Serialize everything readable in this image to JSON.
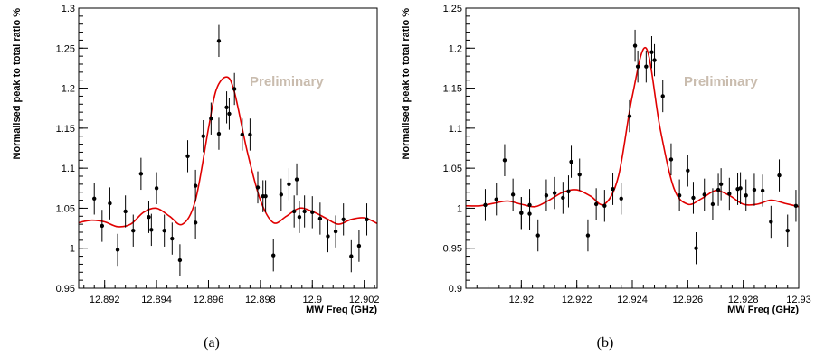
{
  "chart_data": [
    {
      "type": "scatter",
      "caption": "(a)",
      "xlabel": "MW Freq (GHz)",
      "ylabel": "Normalised peak to total ratio %",
      "annotation": "Preliminary",
      "xlim": [
        12.891,
        12.9025
      ],
      "ylim": [
        0.95,
        1.3
      ],
      "xticks": [
        "12.892",
        "12.894",
        "12.896",
        "12.898",
        "12.9",
        "12.902"
      ],
      "xtick_values": [
        12.892,
        12.894,
        12.896,
        12.898,
        12.9,
        12.902
      ],
      "yticks": [
        "0.95",
        "1",
        "1.05",
        "1.1",
        "1.15",
        "1.2",
        "1.25",
        "1.3"
      ],
      "ytick_values": [
        0.95,
        1.0,
        1.05,
        1.1,
        1.15,
        1.2,
        1.25,
        1.3
      ],
      "grid": false,
      "colors": {
        "data": "#000000",
        "fit": "#e00000",
        "annotation": "#c9bcae"
      },
      "series": [
        {
          "kind": "points_with_errors",
          "x": [
            12.8916,
            12.8919,
            12.8922,
            12.8925,
            12.8928,
            12.8931,
            12.8934,
            12.8937,
            12.894,
            12.8943,
            12.8946,
            12.8949,
            12.8952,
            12.8955,
            12.8958,
            12.8961,
            12.8964,
            12.8967,
            12.897,
            12.8973,
            12.8976,
            12.8979,
            12.8982,
            12.8985,
            12.8988,
            12.8991,
            12.8994,
            12.8997,
            12.9,
            12.9003,
            12.9006,
            12.9009,
            12.9012,
            12.9015,
            12.9018,
            12.9021,
            12.8938,
            12.8955,
            12.8964,
            12.8968,
            12.8981,
            12.8993,
            12.8995
          ],
          "y": [
            1.062,
            1.028,
            1.056,
            0.998,
            1.046,
            1.022,
            1.093,
            1.039,
            1.075,
            1.022,
            1.012,
            0.985,
            1.115,
            1.078,
            1.14,
            1.162,
            1.259,
            1.176,
            1.199,
            1.142,
            1.142,
            1.076,
            1.065,
            0.991,
            1.067,
            1.08,
            1.086,
            1.046,
            1.045,
            1.037,
            1.015,
            1.021,
            1.036,
            0.99,
            1.003,
            1.036,
            1.023,
            1.032,
            1.143,
            1.168,
            1.065,
            1.046,
            1.039
          ],
          "err": [
            0.02,
            0.02,
            0.02,
            0.02,
            0.02,
            0.02,
            0.02,
            0.02,
            0.02,
            0.02,
            0.02,
            0.02,
            0.02,
            0.02,
            0.02,
            0.02,
            0.02,
            0.02,
            0.02,
            0.02,
            0.02,
            0.02,
            0.02,
            0.02,
            0.02,
            0.02,
            0.02,
            0.02,
            0.02,
            0.02,
            0.02,
            0.02,
            0.02,
            0.02,
            0.02,
            0.02,
            0.02,
            0.02,
            0.02,
            0.02,
            0.02,
            0.02,
            0.02
          ]
        },
        {
          "kind": "fit_curve",
          "x": [
            12.891,
            12.8915,
            12.892,
            12.8925,
            12.893,
            12.8935,
            12.894,
            12.8945,
            12.895,
            12.8955,
            12.896,
            12.8963,
            12.8967,
            12.897,
            12.8975,
            12.898,
            12.8985,
            12.899,
            12.8995,
            12.9,
            12.9005,
            12.901,
            12.9015,
            12.902,
            12.9025
          ],
          "y": [
            1.032,
            1.035,
            1.033,
            1.027,
            1.03,
            1.045,
            1.05,
            1.04,
            1.03,
            1.06,
            1.15,
            1.198,
            1.214,
            1.195,
            1.12,
            1.06,
            1.032,
            1.04,
            1.05,
            1.046,
            1.038,
            1.03,
            1.036,
            1.038,
            1.031
          ]
        }
      ]
    },
    {
      "type": "scatter",
      "caption": "(b)",
      "xlabel": "MW Freq (GHz)",
      "ylabel": "Normalised peak to total ratio %",
      "annotation": "Preliminary",
      "xlim": [
        12.918,
        12.93
      ],
      "ylim": [
        0.9,
        1.25
      ],
      "xticks": [
        "12.92",
        "12.922",
        "12.924",
        "12.926",
        "12.928",
        "12.93"
      ],
      "xtick_values": [
        12.92,
        12.922,
        12.924,
        12.926,
        12.928,
        12.93
      ],
      "yticks": [
        "0.9",
        "0.95",
        "1",
        "1.05",
        "1.1",
        "1.15",
        "1.2",
        "1.25"
      ],
      "ytick_values": [
        0.9,
        0.95,
        1.0,
        1.05,
        1.1,
        1.15,
        1.2,
        1.25
      ],
      "grid": false,
      "colors": {
        "data": "#000000",
        "fit": "#e00000",
        "annotation": "#c9bcae"
      },
      "series": [
        {
          "kind": "points_with_errors",
          "x": [
            12.9187,
            12.9191,
            12.9194,
            12.9197,
            12.92,
            12.9203,
            12.9206,
            12.9209,
            12.9212,
            12.9215,
            12.9218,
            12.9221,
            12.9224,
            12.9227,
            12.923,
            12.9233,
            12.9236,
            12.9239,
            12.9242,
            12.9245,
            12.9248,
            12.9251,
            12.9254,
            12.9257,
            12.926,
            12.9263,
            12.9266,
            12.9269,
            12.9272,
            12.9275,
            12.9278,
            12.9281,
            12.9284,
            12.9287,
            12.929,
            12.9293,
            12.9296,
            12.9299,
            12.9241,
            12.9247,
            12.92,
            12.9203,
            12.9217,
            12.9262,
            12.9271,
            12.9279
          ],
          "y": [
            1.004,
            1.011,
            1.06,
            1.017,
            0.994,
            0.993,
            0.966,
            1.016,
            1.019,
            1.013,
            1.058,
            1.042,
            0.966,
            1.005,
            1.003,
            1.024,
            1.012,
            1.115,
            1.177,
            1.177,
            1.185,
            1.14,
            1.061,
            1.016,
            1.047,
            0.95,
            1.017,
            1.005,
            1.03,
            1.018,
            1.024,
            1.016,
            1.023,
            1.022,
            0.983,
            1.041,
            0.972,
            1.003,
            1.203,
            1.195,
            0.994,
            1.004,
            1.021,
            1.013,
            1.023,
            1.025
          ],
          "err": [
            0.02,
            0.02,
            0.02,
            0.02,
            0.02,
            0.02,
            0.02,
            0.02,
            0.02,
            0.02,
            0.02,
            0.02,
            0.02,
            0.02,
            0.02,
            0.02,
            0.02,
            0.02,
            0.02,
            0.02,
            0.02,
            0.02,
            0.02,
            0.02,
            0.02,
            0.02,
            0.02,
            0.02,
            0.02,
            0.02,
            0.02,
            0.02,
            0.02,
            0.02,
            0.02,
            0.02,
            0.02,
            0.02,
            0.02,
            0.02,
            0.02,
            0.02,
            0.02,
            0.02,
            0.02,
            0.02
          ]
        },
        {
          "kind": "fit_curve",
          "x": [
            12.918,
            12.9185,
            12.919,
            12.9195,
            12.92,
            12.9205,
            12.921,
            12.9215,
            12.922,
            12.9225,
            12.923,
            12.9235,
            12.924,
            12.9245,
            12.925,
            12.9255,
            12.926,
            12.9265,
            12.927,
            12.9275,
            12.928,
            12.9285,
            12.929,
            12.9295,
            12.93
          ],
          "y": [
            1.003,
            1.003,
            1.006,
            1.009,
            1.005,
            1.002,
            1.01,
            1.02,
            1.023,
            1.015,
            1.005,
            1.04,
            1.14,
            1.2,
            1.1,
            1.025,
            1.005,
            1.012,
            1.022,
            1.016,
            1.005,
            1.005,
            1.01,
            1.006,
            1.002
          ]
        }
      ]
    }
  ]
}
